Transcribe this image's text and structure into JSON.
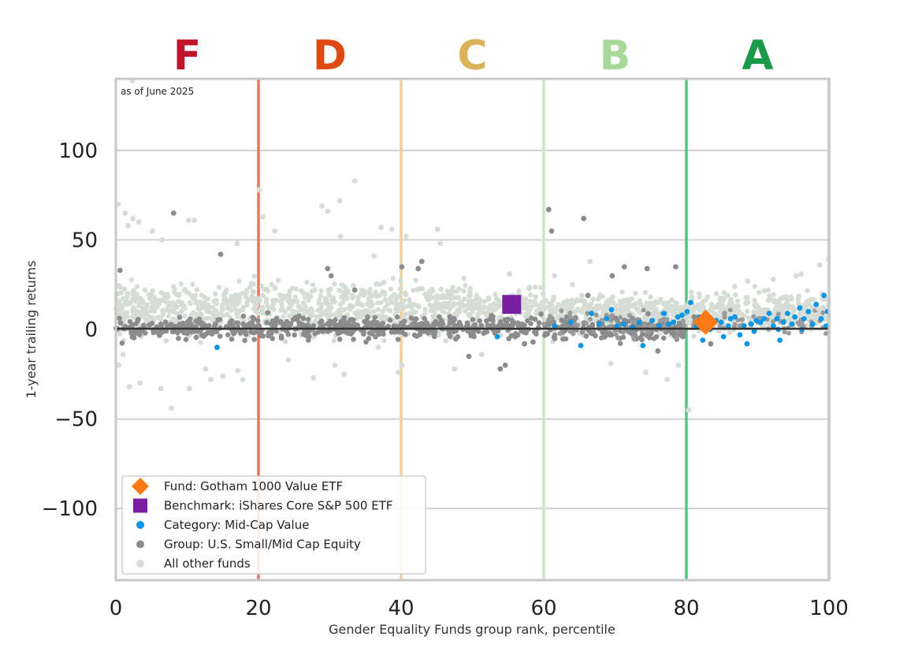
{
  "chart_data": {
    "type": "scatter",
    "note": "as of June 2025",
    "xlabel": "Gender Equality Funds group rank, percentile",
    "ylabel": "1-year trailing returns",
    "xlim": [
      0,
      100
    ],
    "ylim": [
      -140,
      140
    ],
    "xticks": [
      "0",
      "20",
      "40",
      "60",
      "80",
      "100"
    ],
    "yticks": [
      "100",
      "50",
      "0",
      "−50",
      "−100"
    ],
    "ytick_values": [
      100,
      50,
      0,
      -50,
      -100
    ],
    "xtick_values": [
      0,
      20,
      40,
      60,
      80,
      100
    ],
    "grid": true,
    "zero_line": 0,
    "grade_bands": [
      {
        "grade": "F",
        "center": 10,
        "color": "#c0142b"
      },
      {
        "grade": "D",
        "center": 30,
        "color": "#dd4a12"
      },
      {
        "grade": "C",
        "center": 50,
        "color": "#d9b25a"
      },
      {
        "grade": "B",
        "center": 70,
        "color": "#a8d89a"
      },
      {
        "grade": "A",
        "center": 90,
        "color": "#1a9a4a"
      }
    ],
    "band_dividers": [
      {
        "x": 20,
        "color": "#e9785a"
      },
      {
        "x": 40,
        "color": "#edd09a"
      },
      {
        "x": 60,
        "color": "#cbe8c3"
      },
      {
        "x": 80,
        "color": "#5fc084"
      },
      {
        "x": 100,
        "color": "#8fd0a6"
      }
    ],
    "legend": {
      "position": "lower-left",
      "entries": [
        {
          "label": "Fund: Gotham 1000 Value ETF",
          "marker": "diamond",
          "color": "#ff7a14"
        },
        {
          "label": "Benchmark: iShares Core S&P 500 ETF",
          "marker": "square",
          "color": "#7b1fa2"
        },
        {
          "label": "Category: Mid-Cap Value",
          "marker": "circle",
          "color": "#0a96e6"
        },
        {
          "label": "Group: U.S. Small/Mid Cap Equity",
          "marker": "circle",
          "color": "#8c8c8c"
        },
        {
          "label": "All other funds",
          "marker": "circle",
          "color": "#d6dcd6"
        }
      ]
    },
    "series": [
      {
        "name": "Fund: Gotham 1000 Value ETF",
        "marker": "diamond",
        "color": "#ff7a14",
        "points": [
          [
            82.7,
            4
          ]
        ]
      },
      {
        "name": "Benchmark: iShares Core S&P 500 ETF",
        "marker": "square",
        "color": "#7b1fa2",
        "points": [
          [
            55.5,
            14
          ]
        ]
      },
      {
        "name": "Category: Mid-Cap Value",
        "marker": "circle",
        "color": "#0a96e6",
        "points": [
          [
            14.2,
            -10
          ],
          [
            53.5,
            -4
          ],
          [
            61.5,
            2
          ],
          [
            63.8,
            4
          ],
          [
            65.2,
            -9
          ],
          [
            66.7,
            9
          ],
          [
            67.8,
            3
          ],
          [
            68.8,
            6
          ],
          [
            69.5,
            11
          ],
          [
            70.3,
            2
          ],
          [
            71.2,
            3
          ],
          [
            72.5,
            1
          ],
          [
            73.4,
            4
          ],
          [
            73.9,
            -9
          ],
          [
            75.2,
            5
          ],
          [
            76.2,
            2
          ],
          [
            76.9,
            9
          ],
          [
            77.5,
            3
          ],
          [
            78.2,
            4
          ],
          [
            78.8,
            7
          ],
          [
            79.4,
            8
          ],
          [
            80.1,
            10
          ],
          [
            80.6,
            15
          ],
          [
            81.4,
            2
          ],
          [
            81.9,
            7
          ],
          [
            82.3,
            -6
          ],
          [
            83.3,
            0
          ],
          [
            84.2,
            5
          ],
          [
            84.9,
            4
          ],
          [
            85.2,
            -4
          ],
          [
            85.9,
            2
          ],
          [
            86.2,
            6
          ],
          [
            86.8,
            7
          ],
          [
            87.5,
            -3
          ],
          [
            88.1,
            2
          ],
          [
            88.5,
            -8
          ],
          [
            89.1,
            3
          ],
          [
            89.8,
            5
          ],
          [
            90.4,
            4
          ],
          [
            90.9,
            6
          ],
          [
            91.6,
            9
          ],
          [
            92.2,
            2
          ],
          [
            92.7,
            6
          ],
          [
            93.1,
            -6
          ],
          [
            93.6,
            4
          ],
          [
            94.2,
            9
          ],
          [
            94.8,
            3
          ],
          [
            95.2,
            7
          ],
          [
            95.9,
            12
          ],
          [
            96.5,
            6
          ],
          [
            97.1,
            10
          ],
          [
            97.7,
            3
          ],
          [
            98.2,
            14
          ],
          [
            98.9,
            6
          ],
          [
            99.3,
            19
          ],
          [
            99.8,
            10
          ],
          [
            99.6,
            2
          ],
          [
            96.2,
            0
          ],
          [
            92.9,
            0
          ],
          [
            89.5,
            -1
          ]
        ]
      },
      {
        "name": "Group: U.S. Small/Mid Cap Equity",
        "marker": "circle",
        "color": "#8c8c8c",
        "points": [
          [
            0.6,
            33
          ],
          [
            8.1,
            65
          ],
          [
            14.7,
            42
          ],
          [
            29.7,
            34
          ],
          [
            30.2,
            30
          ],
          [
            33.5,
            22
          ],
          [
            40.1,
            35
          ],
          [
            42.4,
            34
          ],
          [
            42.9,
            38
          ],
          [
            53.9,
            -22
          ],
          [
            54.6,
            -20
          ],
          [
            60.7,
            67
          ],
          [
            61.1,
            55
          ],
          [
            65.6,
            62
          ],
          [
            69.6,
            30
          ],
          [
            71.3,
            35
          ],
          [
            74.5,
            34
          ],
          [
            78.5,
            35
          ],
          [
            49.5,
            -15
          ],
          [
            57.3,
            -8
          ],
          [
            83.4,
            -8
          ],
          [
            58.5,
            -7
          ],
          [
            69.5,
            -3
          ],
          [
            72.2,
            -2
          ],
          [
            76.0,
            -12
          ],
          [
            79.5,
            -4
          ],
          [
            81.1,
            7
          ],
          [
            66.2,
            19
          ]
        ]
      },
      {
        "name": "All other funds",
        "marker": "circle",
        "color": "#d6dcd6",
        "points": [
          [
            0.3,
            70
          ],
          [
            1.3,
            65
          ],
          [
            2.4,
            62
          ],
          [
            3.2,
            60
          ],
          [
            1.7,
            58
          ],
          [
            20.1,
            78
          ],
          [
            20.6,
            63
          ],
          [
            22.3,
            55
          ],
          [
            28.9,
            69
          ],
          [
            29.7,
            66
          ],
          [
            31.4,
            72
          ],
          [
            33.5,
            83
          ],
          [
            31.5,
            52
          ],
          [
            37.2,
            57
          ],
          [
            38.7,
            56
          ],
          [
            40.7,
            52
          ],
          [
            45.1,
            56
          ],
          [
            45.5,
            48
          ],
          [
            36.2,
            41
          ],
          [
            10.2,
            61
          ],
          [
            11.0,
            61
          ],
          [
            5.1,
            55
          ],
          [
            6.5,
            50
          ],
          [
            17.0,
            48
          ],
          [
            1.9,
            -32
          ],
          [
            3.4,
            -30
          ],
          [
            6.3,
            -33
          ],
          [
            7.8,
            -44
          ],
          [
            10.3,
            -33
          ],
          [
            12.6,
            -22
          ],
          [
            13.3,
            -28
          ],
          [
            15.0,
            -26
          ],
          [
            17.1,
            -23
          ],
          [
            17.8,
            -28
          ],
          [
            24.2,
            -17
          ],
          [
            27.7,
            -27
          ],
          [
            30.7,
            -20
          ],
          [
            32.0,
            -25
          ],
          [
            36.8,
            -10
          ],
          [
            39.6,
            -24
          ],
          [
            40.1,
            -20
          ],
          [
            47.5,
            -22
          ],
          [
            51.3,
            -14
          ],
          [
            69.4,
            -19
          ],
          [
            74.3,
            -24
          ],
          [
            77.3,
            -28
          ],
          [
            78.9,
            -20
          ],
          [
            80.3,
            -45
          ],
          [
            99.9,
            39
          ],
          [
            98.7,
            36
          ],
          [
            96.1,
            31
          ],
          [
            92.2,
            28
          ],
          [
            95.4,
            30
          ],
          [
            88.6,
            27
          ],
          [
            86.8,
            24
          ],
          [
            84.2,
            20
          ],
          [
            64.0,
            25
          ],
          [
            66.5,
            38
          ],
          [
            61.5,
            30
          ],
          [
            55.2,
            31
          ],
          [
            2.3,
            139
          ],
          [
            1.0,
            -14
          ],
          [
            0.4,
            -20
          ],
          [
            1.6,
            20
          ],
          [
            2.8,
            16
          ],
          [
            4.1,
            22
          ],
          [
            5.5,
            12
          ],
          [
            7.3,
            18
          ],
          [
            9.2,
            14
          ],
          [
            11.1,
            19
          ],
          [
            13.0,
            11
          ],
          [
            15.4,
            17
          ],
          [
            17.2,
            15
          ],
          [
            19.3,
            21
          ],
          [
            21.5,
            12
          ],
          [
            23.8,
            18
          ],
          [
            25.6,
            13
          ],
          [
            27.9,
            22
          ],
          [
            29.4,
            16
          ],
          [
            31.7,
            11
          ],
          [
            33.2,
            19
          ],
          [
            35.3,
            14
          ],
          [
            37.6,
            20
          ],
          [
            39.1,
            15
          ],
          [
            41.5,
            12
          ],
          [
            43.6,
            18
          ],
          [
            45.8,
            13
          ],
          [
            47.2,
            21
          ],
          [
            49.6,
            16
          ],
          [
            51.2,
            11
          ],
          [
            53.4,
            17
          ],
          [
            55.7,
            19
          ],
          [
            57.6,
            12
          ],
          [
            59.8,
            15
          ],
          [
            61.4,
            18
          ],
          [
            63.1,
            12
          ],
          [
            65.4,
            16
          ],
          [
            67.9,
            13
          ],
          [
            69.7,
            15
          ],
          [
            71.8,
            11
          ],
          [
            73.6,
            14
          ],
          [
            75.3,
            12
          ],
          [
            77.8,
            13
          ],
          [
            79.2,
            9
          ],
          [
            82.1,
            13
          ],
          [
            84.5,
            14
          ],
          [
            86.9,
            12
          ],
          [
            88.6,
            15
          ],
          [
            90.3,
            11
          ],
          [
            92.4,
            16
          ],
          [
            94.1,
            13
          ],
          [
            96.8,
            14
          ],
          [
            98.4,
            12
          ],
          [
            99.6,
            17
          ]
        ]
      }
    ]
  }
}
